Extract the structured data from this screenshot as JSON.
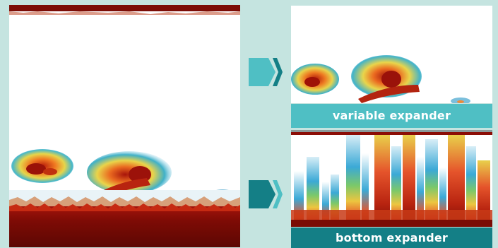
{
  "panels": {
    "variable_expander": {
      "label": "variable expander"
    },
    "bottom_expander": {
      "label": "bottom expander"
    }
  },
  "colors": {
    "background": "#c5e4e0",
    "variable_caption": "#4fbfc4",
    "bottom_caption": "#147f86",
    "arrow_variable": "#4fbfc4",
    "arrow_bottom": "#147f86",
    "echo_strong": "#8b0d06",
    "echo_medium": "#e5542b",
    "echo_weak": "#3ba9d6"
  },
  "icons": {
    "arrow_variable": "chevron-right-icon",
    "arrow_bottom": "chevron-right-icon"
  }
}
